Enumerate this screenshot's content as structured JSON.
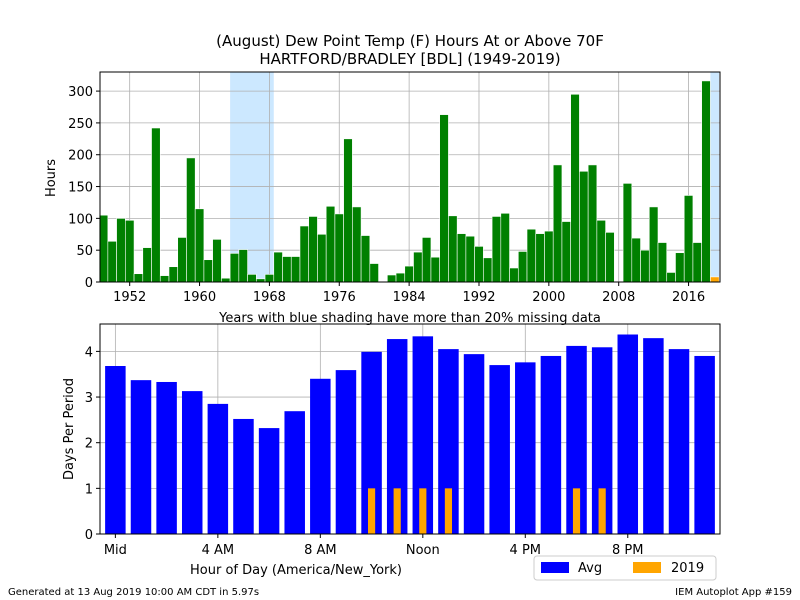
{
  "title_line1": "(August) Dew Point Temp (F) Hours At or Above 70F",
  "title_line2": "HARTFORD/BRADLEY [BDL] (1949-2019)",
  "missing_note": "Years with blue shading have more than 20% missing data",
  "footer_left": "Generated at 13 Aug 2019 10:00 AM CDT in 5.97s",
  "footer_right": "IEM Autoplot App #159",
  "colors": {
    "hours_bar": "#008000",
    "avg_bar": "#0000ff",
    "current_bar": "#ffa500",
    "shade": "#cce8ff",
    "grid": "#b0b0b0"
  },
  "chart_data": [
    {
      "type": "bar",
      "ylabel": "Hours",
      "xlim": [
        1948.6,
        2019.6
      ],
      "ylim": [
        0,
        330
      ],
      "xticks": [
        1952,
        1960,
        1968,
        1976,
        1984,
        1992,
        2000,
        2008,
        2016
      ],
      "yticks": [
        0,
        50,
        100,
        150,
        200,
        250,
        300
      ],
      "grid": true,
      "missing_shade_ranges": [
        [
          1963.5,
          1968.5
        ],
        [
          2018.5,
          2019.5
        ]
      ],
      "series": [
        {
          "x": [
            1949,
            1950,
            1951,
            1952,
            1953,
            1954,
            1955,
            1956,
            1957,
            1958,
            1959,
            1960,
            1961,
            1962,
            1963,
            1964,
            1965,
            1966,
            1967,
            1968,
            1969,
            1970,
            1971,
            1972,
            1973,
            1974,
            1975,
            1976,
            1977,
            1978,
            1979,
            1980,
            1981,
            1982,
            1983,
            1984,
            1985,
            1986,
            1987,
            1988,
            1989,
            1990,
            1991,
            1992,
            1993,
            1994,
            1995,
            1996,
            1997,
            1998,
            1999,
            2000,
            2001,
            2002,
            2003,
            2004,
            2005,
            2006,
            2007,
            2008,
            2009,
            2010,
            2011,
            2012,
            2013,
            2014,
            2015,
            2016,
            2017,
            2018,
            2019
          ],
          "values": [
            105,
            64,
            100,
            97,
            13,
            54,
            242,
            10,
            24,
            70,
            195,
            115,
            35,
            67,
            6,
            45,
            51,
            12,
            5,
            12,
            47,
            40,
            40,
            88,
            103,
            75,
            119,
            107,
            225,
            118,
            73,
            29,
            0,
            11,
            14,
            25,
            47,
            70,
            39,
            263,
            104,
            76,
            72,
            56,
            38,
            103,
            108,
            22,
            48,
            83,
            76,
            80,
            184,
            95,
            295,
            174,
            184,
            97,
            78,
            0,
            155,
            69,
            50,
            118,
            62,
            15,
            46,
            136,
            62,
            316,
            8
          ]
        }
      ]
    },
    {
      "type": "bar",
      "xlabel": "Hour of Day (America/New_York)",
      "ylabel": "Days Per Period",
      "xlim": [
        -0.6,
        23.6
      ],
      "ylim": [
        0,
        4.6
      ],
      "xtick_positions": [
        0,
        4,
        8,
        12,
        16,
        20
      ],
      "xtick_labels": [
        "Mid",
        "4 AM",
        "8 AM",
        "Noon",
        "4 PM",
        "8 PM"
      ],
      "yticks": [
        0,
        1,
        2,
        3,
        4
      ],
      "grid": true,
      "legend_position": "below-right",
      "categories": [
        0,
        1,
        2,
        3,
        4,
        5,
        6,
        7,
        8,
        9,
        10,
        11,
        12,
        13,
        14,
        15,
        16,
        17,
        18,
        19,
        20,
        21,
        22,
        23
      ],
      "series": [
        {
          "name": "Avg",
          "values": [
            3.68,
            3.37,
            3.33,
            3.13,
            2.85,
            2.52,
            2.32,
            2.69,
            3.4,
            3.59,
            3.99,
            4.27,
            4.33,
            4.05,
            3.94,
            3.7,
            3.76,
            3.9,
            4.12,
            4.09,
            4.37,
            4.29,
            4.05,
            3.9
          ]
        },
        {
          "name": "2019",
          "values": [
            0,
            0,
            0,
            0,
            0,
            0,
            0,
            0,
            0,
            0,
            1,
            1,
            1,
            1,
            0,
            0,
            0,
            0,
            1,
            1,
            0,
            0,
            0,
            0
          ]
        }
      ]
    }
  ]
}
